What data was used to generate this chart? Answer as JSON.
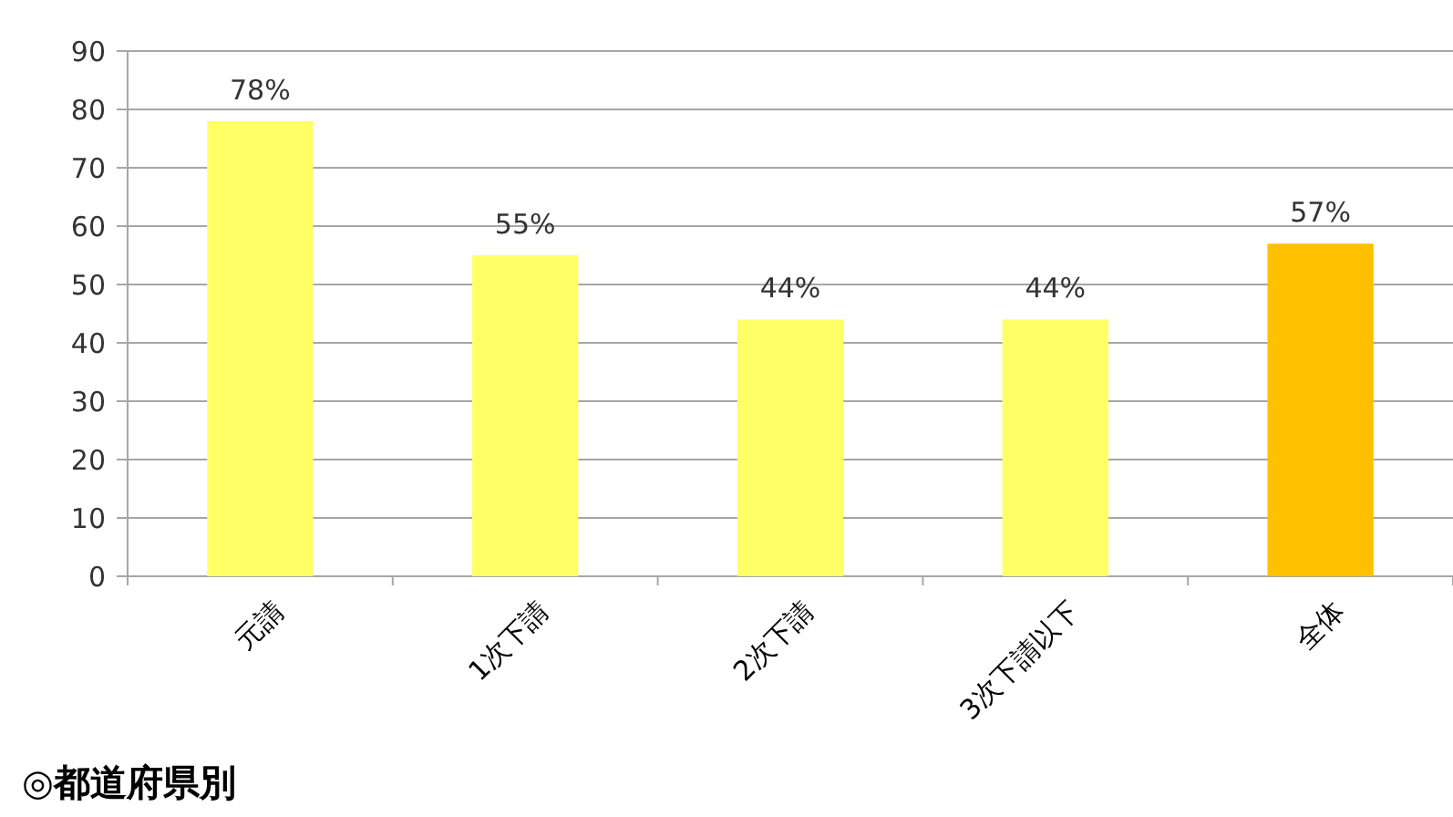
{
  "chart_data": {
    "type": "bar",
    "categories": [
      "元請",
      "1次下請",
      "2次下請",
      "3次下請以下",
      "全体"
    ],
    "values": [
      78,
      55,
      44,
      44,
      57
    ],
    "colors": [
      "#ffff66",
      "#ffff66",
      "#ffff66",
      "#ffff66",
      "#ffc000"
    ],
    "value_labels": [
      "78%",
      "55%",
      "44%",
      "44%",
      "57%"
    ],
    "ylim": [
      0,
      90
    ],
    "yticks": [
      0,
      10,
      20,
      30,
      40,
      50,
      60,
      70,
      80,
      90
    ],
    "grid": "y",
    "annotations": [
      "◎都道府県別"
    ]
  }
}
